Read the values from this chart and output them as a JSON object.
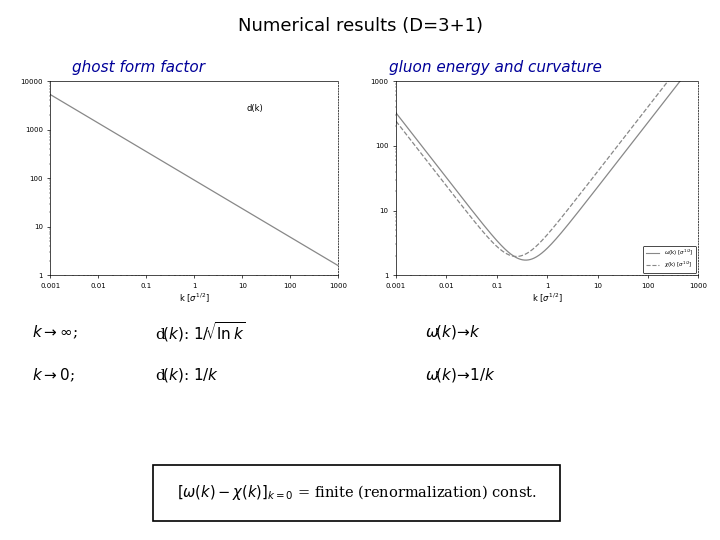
{
  "title": "Numerical results (D=3+1)",
  "title_bg": "#00EEEE",
  "left_label": "ghost form factor",
  "right_label": "gluon energy and curvature",
  "label_color": "#000099",
  "bg_color": "#FFFFFF",
  "ghost_xlim": [
    0.001,
    1000
  ],
  "ghost_ylim": [
    1,
    10000
  ],
  "gluon_xlim": [
    0.001,
    1000
  ],
  "gluon_ylim": [
    1,
    1000
  ],
  "line_color": "#888888",
  "formula_bg": "#FF88FF",
  "xtick_labels": [
    "0.001",
    "0.01",
    "0.1",
    "1",
    "10",
    "100",
    "1000"
  ],
  "left_ytick_labels": [
    "1",
    "10",
    "100",
    "1000",
    "10000"
  ],
  "right_ytick_labels": [
    "1",
    "10",
    "100",
    "1000"
  ]
}
